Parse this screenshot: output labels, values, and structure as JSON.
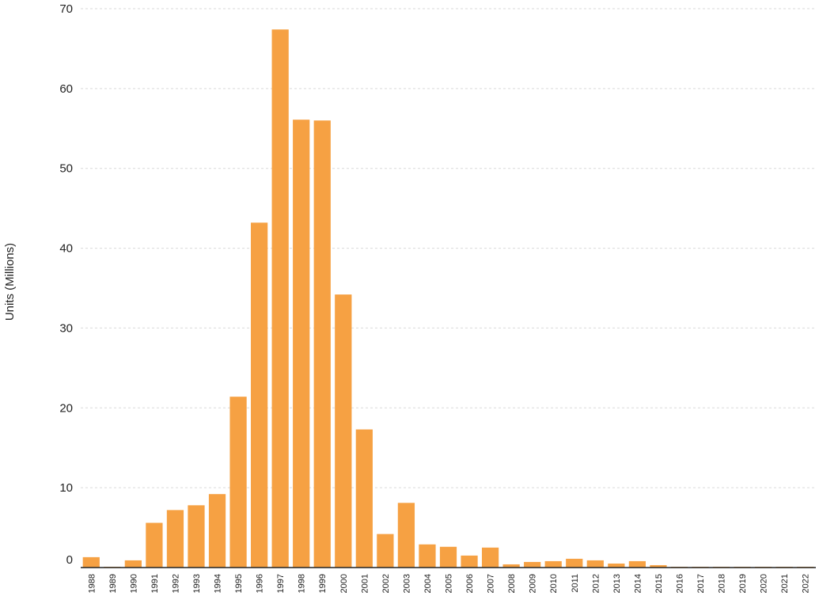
{
  "chart_data": {
    "type": "bar",
    "title": "",
    "xlabel": "",
    "ylabel": "Units (Millions)",
    "ylim": [
      0,
      70
    ],
    "yticks": [
      0,
      10,
      20,
      30,
      40,
      50,
      60,
      70
    ],
    "grid": true,
    "bar_color": "#f6a143",
    "categories": [
      "1988",
      "1989",
      "1990",
      "1991",
      "1992",
      "1993",
      "1994",
      "1995",
      "1996",
      "1997",
      "1998",
      "1999",
      "2000",
      "2001",
      "2002",
      "2003",
      "2004",
      "2005",
      "2006",
      "2007",
      "2008",
      "2009",
      "2010",
      "2011",
      "2012",
      "2013",
      "2014",
      "2015",
      "2016",
      "2017",
      "2018",
      "2019",
      "2020",
      "2021",
      "2022"
    ],
    "values": [
      1.3,
      0.1,
      0.9,
      5.6,
      7.2,
      7.8,
      9.2,
      21.4,
      43.2,
      67.4,
      56.1,
      56.0,
      34.2,
      17.3,
      4.2,
      8.1,
      2.9,
      2.6,
      1.5,
      2.5,
      0.4,
      0.7,
      0.8,
      1.1,
      0.9,
      0.5,
      0.8,
      0.3,
      0.1,
      0.1,
      0.1,
      0.1,
      0.1,
      0.1,
      0.1
    ]
  }
}
